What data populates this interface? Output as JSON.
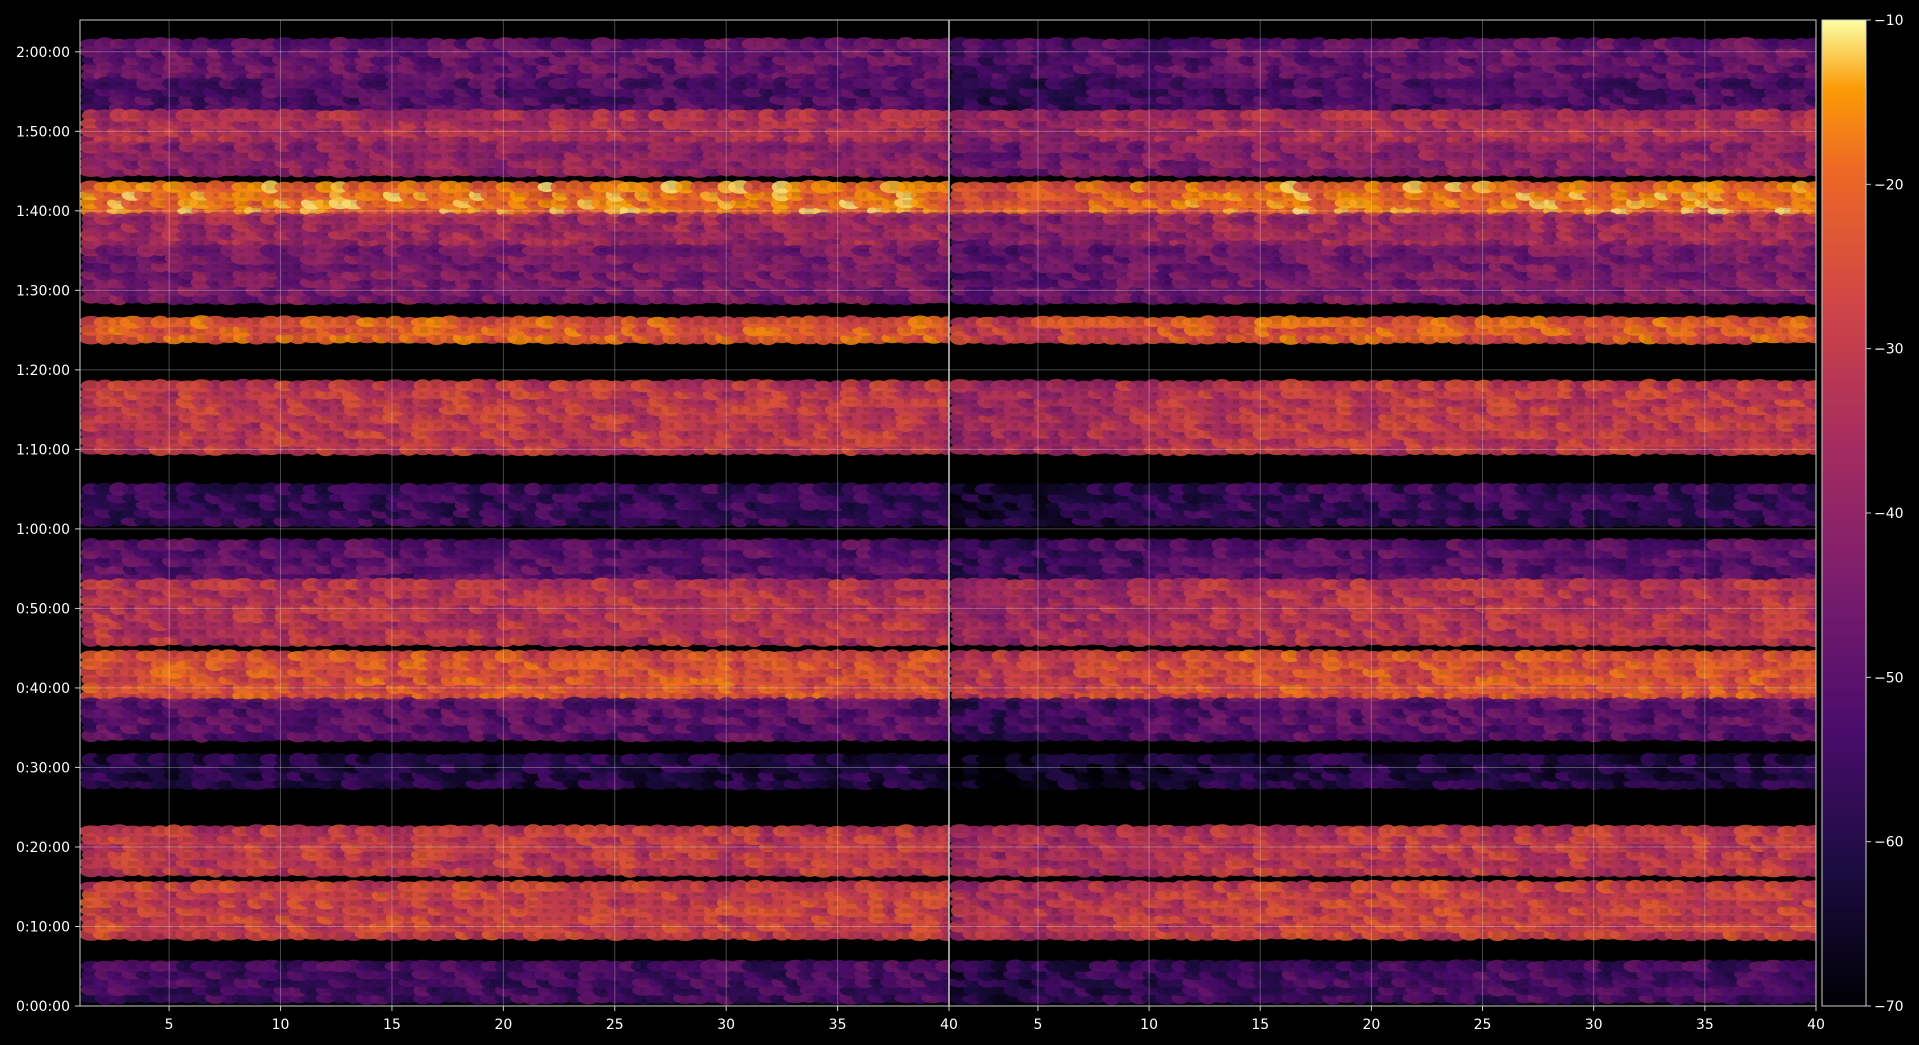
{
  "chart_data": {
    "type": "heatmap",
    "title": "",
    "xlabel": "",
    "ylabel": "",
    "background": "#000000",
    "colormap": "inferno",
    "grid": true,
    "panels": [
      {
        "name": "",
        "xlim": [
          1,
          40
        ],
        "xticks": [
          5,
          10,
          15,
          20,
          25,
          30,
          35,
          40
        ],
        "xtick_labels": [
          "5",
          "10",
          "15",
          "20",
          "25",
          "30",
          "35",
          "40"
        ]
      },
      {
        "name": "",
        "xlim": [
          1,
          40
        ],
        "xticks": [
          5,
          10,
          15,
          20,
          25,
          30,
          35,
          40
        ],
        "xtick_labels": [
          "5",
          "10",
          "15",
          "20",
          "25",
          "30",
          "35",
          "40"
        ]
      }
    ],
    "ylim_seconds": [
      0,
      7440
    ],
    "yticks_seconds": [
      0,
      600,
      1200,
      1800,
      2400,
      3000,
      3600,
      4200,
      4800,
      5400,
      6000,
      6600,
      7200
    ],
    "ytick_labels": [
      "0:00:00",
      "0:10:00",
      "0:20:00",
      "0:30:00",
      "0:40:00",
      "0:50:00",
      "1:00:00",
      "1:10:00",
      "1:20:00",
      "1:30:00",
      "1:40:00",
      "1:50:00",
      "2:00:00"
    ],
    "colorbar": {
      "vmin": -70,
      "vmax": -10,
      "ticks": [
        -10,
        -20,
        -30,
        -40,
        -50,
        -60,
        -70
      ],
      "tick_labels": [
        "−10",
        "−20",
        "−30",
        "−40",
        "−50",
        "−60",
        "−70"
      ]
    },
    "intensity_bands": [
      {
        "y_from": 7020,
        "y_to": 7260,
        "level": -48
      },
      {
        "y_from": 6780,
        "y_to": 6960,
        "level": -52
      },
      {
        "y_from": 6540,
        "y_to": 6720,
        "level": -34
      },
      {
        "y_from": 6300,
        "y_to": 6480,
        "level": -40
      },
      {
        "y_from": 6000,
        "y_to": 6180,
        "level": -18
      },
      {
        "y_from": 5760,
        "y_to": 5940,
        "level": -37
      },
      {
        "y_from": 5340,
        "y_to": 5700,
        "level": -44
      },
      {
        "y_from": 5040,
        "y_to": 5160,
        "level": -22
      },
      {
        "y_from": 4200,
        "y_to": 4680,
        "level": -30
      },
      {
        "y_from": 3660,
        "y_to": 3900,
        "level": -56
      },
      {
        "y_from": 3240,
        "y_to": 3480,
        "level": -50
      },
      {
        "y_from": 2760,
        "y_to": 3180,
        "level": -32
      },
      {
        "y_from": 2340,
        "y_to": 2640,
        "level": -24
      },
      {
        "y_from": 2040,
        "y_to": 2280,
        "level": -50
      },
      {
        "y_from": 1680,
        "y_to": 1860,
        "level": -60
      },
      {
        "y_from": 1020,
        "y_to": 1320,
        "level": -30
      },
      {
        "y_from": 540,
        "y_to": 900,
        "level": -28
      },
      {
        "y_from": 60,
        "y_to": 300,
        "level": -54
      }
    ]
  }
}
